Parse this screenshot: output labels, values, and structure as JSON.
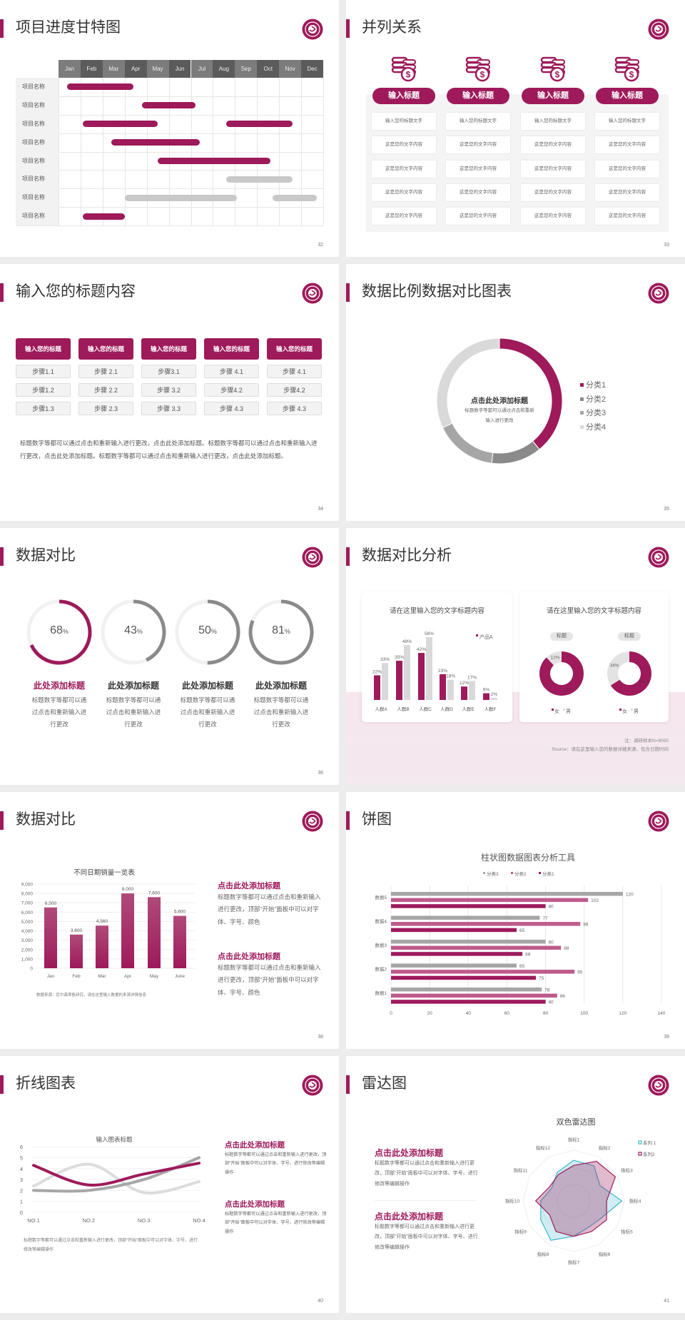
{
  "colors": {
    "accent": "#9e1a5a",
    "accent_mid": "#bf5a8c",
    "gray_dark": "#8a8a8a",
    "gray": "#a6a6a6",
    "gray_light": "#d9d9d9",
    "cyan": "#3fb6cc"
  },
  "slides": [
    {
      "type": "gantt",
      "title": "项目进度甘特图",
      "page": "32",
      "months": [
        "Jan",
        "Feb",
        "Mar",
        "Apr",
        "May",
        "Jun",
        "Jul",
        "Aug",
        "Sep",
        "Oct",
        "Nov",
        "Dec"
      ],
      "rows": [
        {
          "label": "项目名称",
          "bars": [
            {
              "start": 0.4,
              "end": 3.4,
              "status": "active"
            }
          ]
        },
        {
          "label": "项目名称",
          "bars": [
            {
              "start": 3.8,
              "end": 6.2,
              "status": "active"
            }
          ]
        },
        {
          "label": "项目名称",
          "bars": [
            {
              "start": 1.1,
              "end": 4.5,
              "status": "active"
            },
            {
              "start": 7.6,
              "end": 10.6,
              "status": "active"
            }
          ]
        },
        {
          "label": "项目名称",
          "bars": [
            {
              "start": 2.4,
              "end": 6.4,
              "status": "active"
            }
          ]
        },
        {
          "label": "项目名称",
          "bars": [
            {
              "start": 4.5,
              "end": 9.6,
              "status": "active"
            }
          ]
        },
        {
          "label": "项目名称",
          "bars": [
            {
              "start": 7.6,
              "end": 10.6,
              "status": "pending"
            }
          ]
        },
        {
          "label": "项目名称",
          "bars": [
            {
              "start": 3.0,
              "end": 8.1,
              "status": "pending"
            },
            {
              "start": 9.7,
              "end": 11.7,
              "status": "pending"
            }
          ]
        },
        {
          "label": "项目名称",
          "bars": [
            {
              "start": 1.1,
              "end": 3.0,
              "status": "active"
            }
          ]
        }
      ]
    },
    {
      "type": "parallel",
      "title": "并列关系",
      "page": "33",
      "icon": "coins-dollar-icon",
      "columns": [
        {
          "heading": "输入标题",
          "cells": [
            "输入您的标题文字",
            "这是您的文字内容",
            "这是您的文字内容",
            "这是您的文字内容",
            "这是您的文字内容"
          ]
        },
        {
          "heading": "输入标题",
          "cells": [
            "输入您的标题文字",
            "这是您的文字内容",
            "这是您的文字内容",
            "这是您的文字内容",
            "这是您的文字内容"
          ]
        },
        {
          "heading": "输入标题",
          "cells": [
            "输入您的标题文字",
            "这是您的文字内容",
            "这是您的文字内容",
            "这是您的文字内容",
            "这是您的文字内容"
          ]
        },
        {
          "heading": "输入标题",
          "cells": [
            "输入您的标题文字",
            "这是您的文字内容",
            "这是您的文字内容",
            "这是您的文字内容",
            "这是您的文字内容"
          ]
        }
      ]
    },
    {
      "type": "steps",
      "title": "输入您的标题内容",
      "page": "34",
      "columns": [
        {
          "heading": "输入您的标题",
          "steps": [
            "步骤1.1",
            "步骤1.2",
            "步骤1.3"
          ]
        },
        {
          "heading": "输入您的标题",
          "steps": [
            "步骤 2.1",
            "步骤 2.2",
            "步骤 2.3"
          ]
        },
        {
          "heading": "输入您的标题",
          "steps": [
            "步骤3.1",
            "步骤 3.2",
            "步骤 3.3"
          ]
        },
        {
          "heading": "输入您的标题",
          "steps": [
            "步骤 4.1",
            "步骤4.2",
            "步骤 4.3"
          ]
        },
        {
          "heading": "输入您的标题",
          "steps": [
            "步骤 4.1",
            "步骤4.2",
            "步骤 4.3"
          ]
        }
      ],
      "paragraph": "标题数字等都可以通过点击和重新输入进行更改，点击此处添加标题。标题数字等都可以通过点击和重新输入进行更改，点击此处添加标题。标题数字等都可以通过点击和重新输入进行更改，点击此处添加标题。"
    },
    {
      "type": "donut",
      "title": "数据比例数据对比图表",
      "page": "35",
      "center_title": "点击此处添加标题",
      "center_text": "标题数字等都可以通过点击和重新输入进行更改",
      "chart_data": {
        "type": "pie",
        "categories": [
          "分类1",
          "分类2",
          "分类3",
          "分类4"
        ],
        "values": [
          39,
          13,
          16,
          32
        ],
        "colors": [
          "#9e1a5a",
          "#8a8a8a",
          "#a6a6a6",
          "#d9d9d9"
        ],
        "legend": "right"
      }
    },
    {
      "type": "rings",
      "title": "数据对比",
      "page": "36",
      "items": [
        {
          "value": 68,
          "label": "68",
          "unit": "%",
          "heading": "此处添加标题",
          "text": "标题数字等都可以通过点击和重新输入进行更改",
          "highlight": true
        },
        {
          "value": 43,
          "label": "43",
          "unit": "%",
          "heading": "此处添加标题",
          "text": "标题数字等都可以通过点击和重新输入进行更改",
          "highlight": false
        },
        {
          "value": 50,
          "label": "50",
          "unit": "%",
          "heading": "此处添加标题",
          "text": "标题数字等都可以通过点击和重新输入进行更改",
          "highlight": false
        },
        {
          "value": 81,
          "label": "81",
          "unit": "%",
          "heading": "此处添加标题",
          "text": "标题数字等都可以通过点击和重新输入进行更改",
          "highlight": false
        }
      ]
    },
    {
      "type": "analysis",
      "title": "数据对比分析",
      "page": "37",
      "bar_card": {
        "title": "请在这里输入您的文字标题内容",
        "chart_data": {
          "type": "bar",
          "categories": [
            "人群A",
            "人群B",
            "人群C",
            "人群D",
            "人群E",
            "人群F"
          ],
          "series": [
            {
              "name": "产品A",
              "values": [
                22,
                35,
                42,
                23,
                12,
                6
              ],
              "labels": [
                "22%",
                "35%",
                "42%",
                "23%",
                "12%",
                "6%"
              ]
            },
            {
              "values": [
                33,
                49,
                56,
                18,
                17,
                2
              ],
              "labels": [
                "33%",
                "49%",
                "56%",
                "18%",
                "17%",
                "2%"
              ]
            }
          ],
          "legend": "top-right"
        }
      },
      "donut_card": {
        "title": "请在这里输入您的文字标题内容",
        "chart_data": [
          {
            "type": "pie",
            "tag": "标题",
            "categories": [
              "女",
              "男"
            ],
            "values": [
              88,
              12
            ],
            "labels": [
              "88%",
              "12%"
            ]
          },
          {
            "type": "pie",
            "tag": "标题",
            "categories": [
              "女",
              "男"
            ],
            "values": [
              66,
              34
            ],
            "labels": [
              "66%",
              "34%"
            ]
          }
        ]
      },
      "note": "注：调研样本N=9000",
      "source": "Source：请在这里输入您的数据详细来源，包含日期时间"
    },
    {
      "type": "vbar",
      "title": "数据对比",
      "page": "38",
      "chart_data": {
        "type": "bar",
        "title": "不同日期销量一览表",
        "categories": [
          "Jan",
          "Feb",
          "Mar",
          "Apr",
          "May",
          "June"
        ],
        "values": [
          6500,
          3600,
          4560,
          8000,
          7600,
          5600
        ],
        "labels": [
          "6,500",
          "3,600",
          "4,560",
          "8,000",
          "7,600",
          "5,600"
        ],
        "ylim": [
          0,
          9000
        ],
        "yticks": [
          "0",
          "1,000",
          "2,000",
          "3,000",
          "4,000",
          "5,000",
          "6,000",
          "7,000",
          "8,000",
          "9,000"
        ],
        "grid": true
      },
      "source": "数据来源：尼尔森零售研究，请在这里输入数据的来源详情信息",
      "blocks": [
        {
          "heading": "点击此处添加标题",
          "text": "标题数字等都可以通过点击和重新输入进行更改，顶部“开始”面板中可以对字体、字号、颜色"
        },
        {
          "heading": "点击此处添加标题",
          "text": "标题数字等都可以通过点击和重新输入进行更改，顶部“开始”面板中可以对字体、字号、颜色"
        }
      ]
    },
    {
      "type": "hbar",
      "title": "饼图",
      "page": "39",
      "chart_data": {
        "type": "bar",
        "orientation": "horizontal",
        "title": "柱状图数据图表分析工具",
        "categories": [
          "数据5",
          "数据4",
          "数据3",
          "数据2",
          "数据1"
        ],
        "series": [
          {
            "name": "分类3",
            "values": [
              120,
              77,
              80,
              65,
              78
            ]
          },
          {
            "name": "分类2",
            "values": [
              102,
              98,
              88,
              95,
              86
            ]
          },
          {
            "name": "分类1",
            "values": [
              80,
              65,
              68,
              75,
              80
            ]
          }
        ],
        "xlim": [
          0,
          140
        ],
        "xticks": [
          "0",
          "20",
          "40",
          "60",
          "80",
          "100",
          "120",
          "140"
        ],
        "grid": true,
        "legend": "top"
      }
    },
    {
      "type": "line",
      "title": "折线图表",
      "page": "40",
      "chart_data": {
        "type": "line",
        "title": "输入图表标题",
        "categories": [
          "NO.1",
          "NO.2",
          "NO.3",
          "NO.4"
        ],
        "series": [
          {
            "values": [
              4.3,
              2.5,
              3.5,
              4.5
            ],
            "color": "#9e1a5a"
          },
          {
            "values": [
              2.4,
              4.4,
              1.8,
              2.8
            ],
            "color": "#dcdcdc"
          },
          {
            "values": [
              2.0,
              2.0,
              3.0,
              5.0
            ],
            "color": "#a6a6a6"
          }
        ],
        "ylim": [
          0,
          6
        ],
        "yticks": [
          "0",
          "1",
          "2",
          "3",
          "4",
          "5",
          "6"
        ],
        "smooth": true
      },
      "caption": "标题数字等都可以通过点击和重新输入进行更改，顶部“开始”面板中可以对字体、字号、进行修改等编辑操作",
      "blocks": [
        {
          "heading": "点击此处添加标题",
          "text": "标题数字等都可以通过点击和重新输入进行更改，顶部“开始”面板中可以对字体、字号、进行修改等编辑操作"
        },
        {
          "heading": "点击此处添加标题",
          "text": "标题数字等都可以通过点击和重新输入进行更改，顶部“开始”面板中可以对字体、字号、进行修改等编辑操作"
        }
      ]
    },
    {
      "type": "radar",
      "title": "雷达图",
      "page": "41",
      "chart_data": {
        "type": "radar",
        "title": "双色雷达图",
        "categories": [
          "指标1",
          "指标2",
          "指标3",
          "指标4",
          "指标5",
          "指标6",
          "指标7",
          "指标8",
          "指标9",
          "指标10",
          "指标11",
          "指标12"
        ],
        "series": [
          {
            "name": "系列 1",
            "values": [
              8,
              8,
              6,
              9.5,
              6.5,
              6,
              7,
              9,
              7.5,
              6.5,
              5,
              6.5
            ],
            "color": "#3fb6cc"
          },
          {
            "name": "系列2",
            "values": [
              7,
              9,
              9.5,
              6.5,
              7.5,
              7,
              7,
              7,
              5.5,
              7.5,
              5.5,
              6
            ],
            "color": "#9e1a5a"
          }
        ],
        "rlim": [
          0,
          10
        ],
        "legend": "top-right"
      },
      "blocks": [
        {
          "heading": "点击此处添加标题",
          "text": "标题数字等都可以通过点击和重新输入进行更改，顶部“开始”面板中可以对字体、字号、进行修改等编辑操作"
        },
        {
          "heading": "点击此处添加标题",
          "text": "标题数字等都可以通过点击和重新输入进行更改，顶部“开始”面板中可以对字体、字号、进行修改等编辑操作"
        }
      ]
    }
  ]
}
